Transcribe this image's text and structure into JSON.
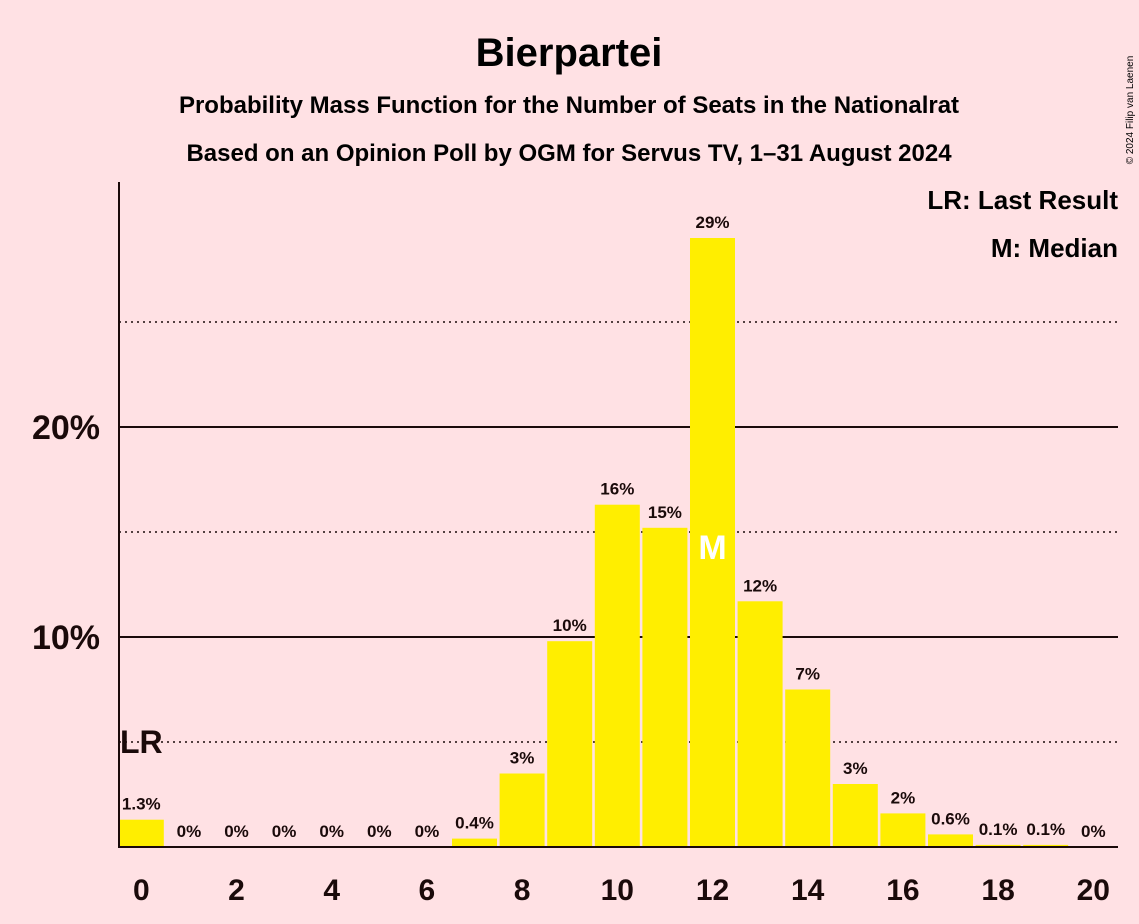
{
  "header": {
    "title": "Bierpartei",
    "subtitle1": "Probability Mass Function for the Number of Seats in the Nationalrat",
    "subtitle2": "Based on an Opinion Poll by OGM for Servus TV, 1–31 August 2024",
    "copyright": "© 2024 Filip van Laenen"
  },
  "legend": {
    "lr": "LR: Last Result",
    "m": "M: Median"
  },
  "colors": {
    "background": "#ffe1e4",
    "bar": "#ffee00",
    "text": "#1a0a0a",
    "median_marker": "#ffffff"
  },
  "chart_data": {
    "type": "bar",
    "x": [
      0,
      1,
      2,
      3,
      4,
      5,
      6,
      7,
      8,
      9,
      10,
      11,
      12,
      13,
      14,
      15,
      16,
      17,
      18,
      19,
      20
    ],
    "values": [
      1.3,
      0,
      0,
      0,
      0,
      0,
      0,
      0.4,
      3.5,
      9.8,
      16.3,
      15.2,
      29.0,
      11.7,
      7.5,
      3.0,
      1.6,
      0.6,
      0.1,
      0.1,
      0
    ],
    "data_labels": [
      "1.3%",
      "0%",
      "0%",
      "0%",
      "0%",
      "0%",
      "0%",
      "0.4%",
      "3%",
      "10%",
      "16%",
      "15%",
      "29%",
      "12%",
      "7%",
      "3%",
      "2%",
      "0.6%",
      "0.1%",
      "0.1%",
      "0%"
    ],
    "x_ticks": [
      0,
      2,
      4,
      6,
      8,
      10,
      12,
      14,
      16,
      18,
      20
    ],
    "x_tick_labels": [
      "0",
      "2",
      "4",
      "6",
      "8",
      "10",
      "12",
      "14",
      "16",
      "18",
      "20"
    ],
    "y_ticks": [
      10,
      20
    ],
    "y_tick_labels": [
      "10%",
      "20%"
    ],
    "y_minor_gridlines": [
      5,
      15,
      25
    ],
    "ylim": [
      0,
      31.5
    ],
    "last_result": {
      "x": 0,
      "label": "LR",
      "level": 5
    },
    "median": {
      "x": 12,
      "label": "M"
    },
    "legend_position": "top-right"
  }
}
